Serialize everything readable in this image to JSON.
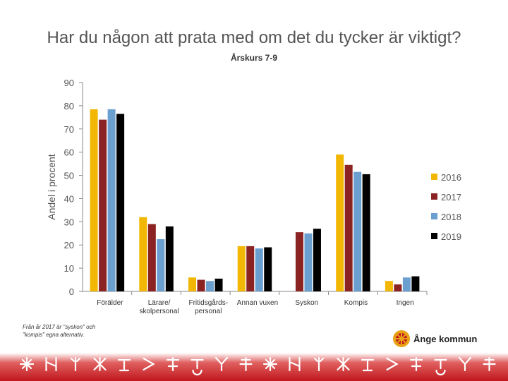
{
  "title": "Har du någon att prata med om det du tycker är viktigt?",
  "subtitle": "Årskurs 7-9",
  "footnote": "Från år 2017 är \"syskon\" och \"kompis\" egna alternativ.",
  "logo": {
    "text": "Ånge kommun",
    "icon": "ange-kommun-emblem"
  },
  "colors": {
    "2016": "#F2B705",
    "2017": "#8B2323",
    "2018": "#6A9FD0",
    "2019": "#000000",
    "axis": "#888888",
    "text": "#555555",
    "band": "#C0171C"
  },
  "chart_data": {
    "type": "bar",
    "title": "",
    "ylabel": "Andel i procent",
    "xlabel": "",
    "ylim": [
      0,
      90
    ],
    "yticks": [
      0,
      10,
      20,
      30,
      40,
      50,
      60,
      70,
      80,
      90
    ],
    "grid": false,
    "legend_position": "right",
    "categories": [
      [
        "Förälder"
      ],
      [
        "Lärare/",
        "skolpersonal"
      ],
      [
        "Fritidsgårds-",
        "personal"
      ],
      [
        "Annan vuxen"
      ],
      [
        "Syskon"
      ],
      [
        "Kompis"
      ],
      [
        "Ingen"
      ]
    ],
    "series": [
      {
        "name": "2016",
        "values": [
          78.5,
          32,
          6,
          19.5,
          null,
          59,
          4.5
        ]
      },
      {
        "name": "2017",
        "values": [
          74,
          29,
          5,
          19.5,
          25.5,
          54.5,
          3
        ]
      },
      {
        "name": "2018",
        "values": [
          78.5,
          22.5,
          4.5,
          18.5,
          25,
          51.5,
          6
        ]
      },
      {
        "name": "2019",
        "values": [
          76.5,
          28,
          5.5,
          19,
          27,
          50.5,
          6.5
        ]
      }
    ]
  }
}
